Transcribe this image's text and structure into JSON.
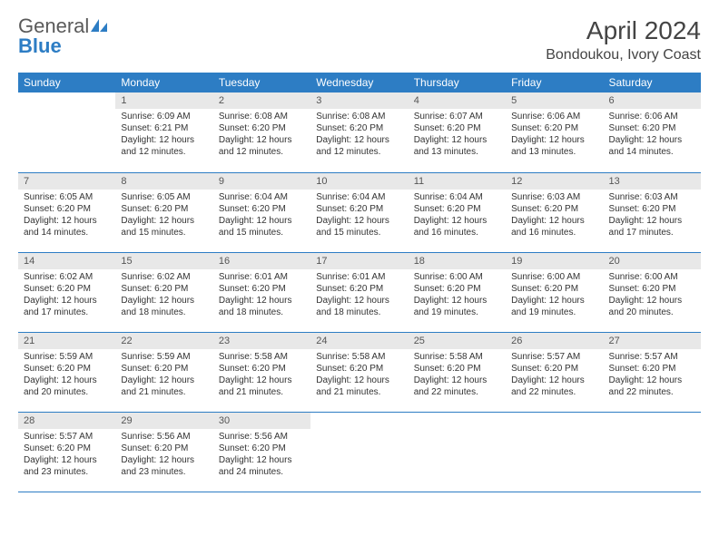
{
  "brand": {
    "part1": "General",
    "part2": "Blue"
  },
  "title": "April 2024",
  "location": "Bondoukou, Ivory Coast",
  "colors": {
    "header_bg": "#2d7dc4",
    "header_text": "#ffffff",
    "daynum_bg": "#e8e8e8",
    "row_border": "#2d7dc4",
    "text": "#333333"
  },
  "days_of_week": [
    "Sunday",
    "Monday",
    "Tuesday",
    "Wednesday",
    "Thursday",
    "Friday",
    "Saturday"
  ],
  "weeks": [
    [
      null,
      {
        "n": "1",
        "sr": "6:09 AM",
        "ss": "6:21 PM",
        "dl": "12 hours and 12 minutes."
      },
      {
        "n": "2",
        "sr": "6:08 AM",
        "ss": "6:20 PM",
        "dl": "12 hours and 12 minutes."
      },
      {
        "n": "3",
        "sr": "6:08 AM",
        "ss": "6:20 PM",
        "dl": "12 hours and 12 minutes."
      },
      {
        "n": "4",
        "sr": "6:07 AM",
        "ss": "6:20 PM",
        "dl": "12 hours and 13 minutes."
      },
      {
        "n": "5",
        "sr": "6:06 AM",
        "ss": "6:20 PM",
        "dl": "12 hours and 13 minutes."
      },
      {
        "n": "6",
        "sr": "6:06 AM",
        "ss": "6:20 PM",
        "dl": "12 hours and 14 minutes."
      }
    ],
    [
      {
        "n": "7",
        "sr": "6:05 AM",
        "ss": "6:20 PM",
        "dl": "12 hours and 14 minutes."
      },
      {
        "n": "8",
        "sr": "6:05 AM",
        "ss": "6:20 PM",
        "dl": "12 hours and 15 minutes."
      },
      {
        "n": "9",
        "sr": "6:04 AM",
        "ss": "6:20 PM",
        "dl": "12 hours and 15 minutes."
      },
      {
        "n": "10",
        "sr": "6:04 AM",
        "ss": "6:20 PM",
        "dl": "12 hours and 15 minutes."
      },
      {
        "n": "11",
        "sr": "6:04 AM",
        "ss": "6:20 PM",
        "dl": "12 hours and 16 minutes."
      },
      {
        "n": "12",
        "sr": "6:03 AM",
        "ss": "6:20 PM",
        "dl": "12 hours and 16 minutes."
      },
      {
        "n": "13",
        "sr": "6:03 AM",
        "ss": "6:20 PM",
        "dl": "12 hours and 17 minutes."
      }
    ],
    [
      {
        "n": "14",
        "sr": "6:02 AM",
        "ss": "6:20 PM",
        "dl": "12 hours and 17 minutes."
      },
      {
        "n": "15",
        "sr": "6:02 AM",
        "ss": "6:20 PM",
        "dl": "12 hours and 18 minutes."
      },
      {
        "n": "16",
        "sr": "6:01 AM",
        "ss": "6:20 PM",
        "dl": "12 hours and 18 minutes."
      },
      {
        "n": "17",
        "sr": "6:01 AM",
        "ss": "6:20 PM",
        "dl": "12 hours and 18 minutes."
      },
      {
        "n": "18",
        "sr": "6:00 AM",
        "ss": "6:20 PM",
        "dl": "12 hours and 19 minutes."
      },
      {
        "n": "19",
        "sr": "6:00 AM",
        "ss": "6:20 PM",
        "dl": "12 hours and 19 minutes."
      },
      {
        "n": "20",
        "sr": "6:00 AM",
        "ss": "6:20 PM",
        "dl": "12 hours and 20 minutes."
      }
    ],
    [
      {
        "n": "21",
        "sr": "5:59 AM",
        "ss": "6:20 PM",
        "dl": "12 hours and 20 minutes."
      },
      {
        "n": "22",
        "sr": "5:59 AM",
        "ss": "6:20 PM",
        "dl": "12 hours and 21 minutes."
      },
      {
        "n": "23",
        "sr": "5:58 AM",
        "ss": "6:20 PM",
        "dl": "12 hours and 21 minutes."
      },
      {
        "n": "24",
        "sr": "5:58 AM",
        "ss": "6:20 PM",
        "dl": "12 hours and 21 minutes."
      },
      {
        "n": "25",
        "sr": "5:58 AM",
        "ss": "6:20 PM",
        "dl": "12 hours and 22 minutes."
      },
      {
        "n": "26",
        "sr": "5:57 AM",
        "ss": "6:20 PM",
        "dl": "12 hours and 22 minutes."
      },
      {
        "n": "27",
        "sr": "5:57 AM",
        "ss": "6:20 PM",
        "dl": "12 hours and 22 minutes."
      }
    ],
    [
      {
        "n": "28",
        "sr": "5:57 AM",
        "ss": "6:20 PM",
        "dl": "12 hours and 23 minutes."
      },
      {
        "n": "29",
        "sr": "5:56 AM",
        "ss": "6:20 PM",
        "dl": "12 hours and 23 minutes."
      },
      {
        "n": "30",
        "sr": "5:56 AM",
        "ss": "6:20 PM",
        "dl": "12 hours and 24 minutes."
      },
      null,
      null,
      null,
      null
    ]
  ],
  "labels": {
    "sunrise": "Sunrise:",
    "sunset": "Sunset:",
    "daylight": "Daylight:"
  }
}
